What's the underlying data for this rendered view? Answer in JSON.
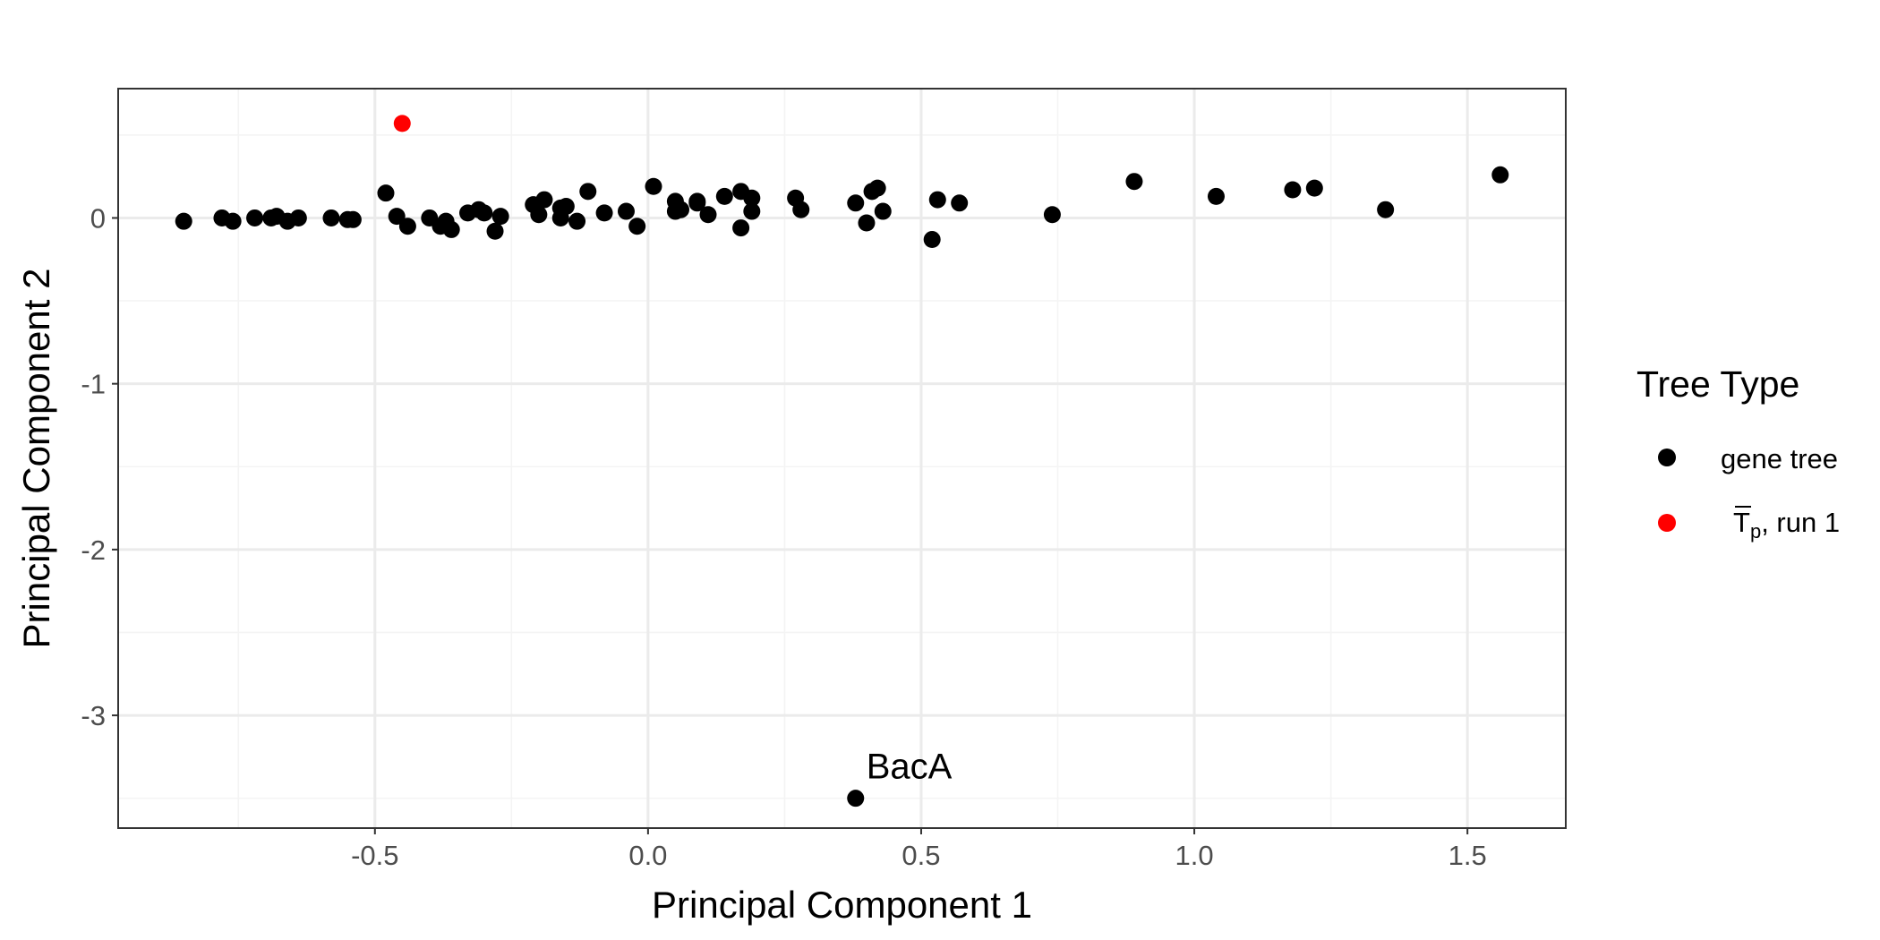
{
  "chart_data": {
    "type": "scatter",
    "xlabel": "Principal Component 1",
    "ylabel": "Principal Component 2",
    "xlim": [
      -0.97,
      1.68
    ],
    "ylim": [
      -3.68,
      0.78
    ],
    "x_ticks": [
      -0.5,
      0.0,
      0.5,
      1.0,
      1.5
    ],
    "x_tick_labels": [
      "-0.5",
      "0.0",
      "0.5",
      "1.0",
      "1.5"
    ],
    "y_ticks": [
      -3,
      -2,
      -1,
      0
    ],
    "y_tick_labels": [
      "-3",
      "-2",
      "-1",
      "0"
    ],
    "grid": true,
    "theme": "bw",
    "legend": {
      "title": "Tree Type",
      "placement": "right",
      "entries": [
        {
          "label": "gene tree",
          "color": "#000000"
        },
        {
          "label_base": "T",
          "label_sub": "p",
          "label_rest": ", run 1",
          "color": "#ff0000"
        }
      ]
    },
    "series": [
      {
        "name": "gene tree",
        "color": "#000000",
        "x": [
          -0.85,
          -0.78,
          -0.76,
          -0.72,
          -0.69,
          -0.68,
          -0.66,
          -0.64,
          -0.58,
          -0.55,
          -0.54,
          -0.48,
          -0.46,
          -0.44,
          -0.4,
          -0.38,
          -0.37,
          -0.36,
          -0.33,
          -0.31,
          -0.3,
          -0.28,
          -0.27,
          -0.21,
          -0.2,
          -0.19,
          -0.16,
          -0.16,
          -0.15,
          -0.13,
          -0.11,
          -0.08,
          -0.04,
          -0.02,
          0.01,
          0.05,
          0.05,
          0.06,
          0.09,
          0.09,
          0.11,
          0.14,
          0.17,
          0.17,
          0.19,
          0.19,
          0.27,
          0.28,
          0.38,
          0.4,
          0.41,
          0.42,
          0.43,
          0.52,
          0.53,
          0.57,
          0.74,
          0.89,
          1.04,
          1.18,
          1.22,
          1.35,
          1.56,
          0.38
        ],
        "y": [
          -0.02,
          0.0,
          -0.02,
          0.0,
          0.0,
          0.01,
          -0.02,
          0.0,
          0.0,
          -0.01,
          -0.01,
          0.15,
          0.01,
          -0.05,
          0.0,
          -0.05,
          -0.02,
          -0.07,
          0.03,
          0.05,
          0.03,
          -0.08,
          0.01,
          0.08,
          0.02,
          0.11,
          0.0,
          0.06,
          0.07,
          -0.02,
          0.16,
          0.03,
          0.04,
          -0.05,
          0.19,
          0.04,
          0.1,
          0.05,
          0.1,
          0.09,
          0.02,
          0.13,
          0.16,
          -0.06,
          0.12,
          0.04,
          0.12,
          0.05,
          0.09,
          -0.03,
          0.16,
          0.18,
          0.04,
          -0.13,
          0.11,
          0.09,
          0.02,
          0.22,
          0.13,
          0.17,
          0.18,
          0.05,
          0.26,
          -3.5
        ]
      },
      {
        "name": "T_p, run 1",
        "color": "#ff0000",
        "x": [
          -0.45
        ],
        "y": [
          0.57
        ]
      }
    ],
    "annotations": [
      {
        "text": "BacA",
        "x": 0.38,
        "y": -3.5
      }
    ]
  }
}
